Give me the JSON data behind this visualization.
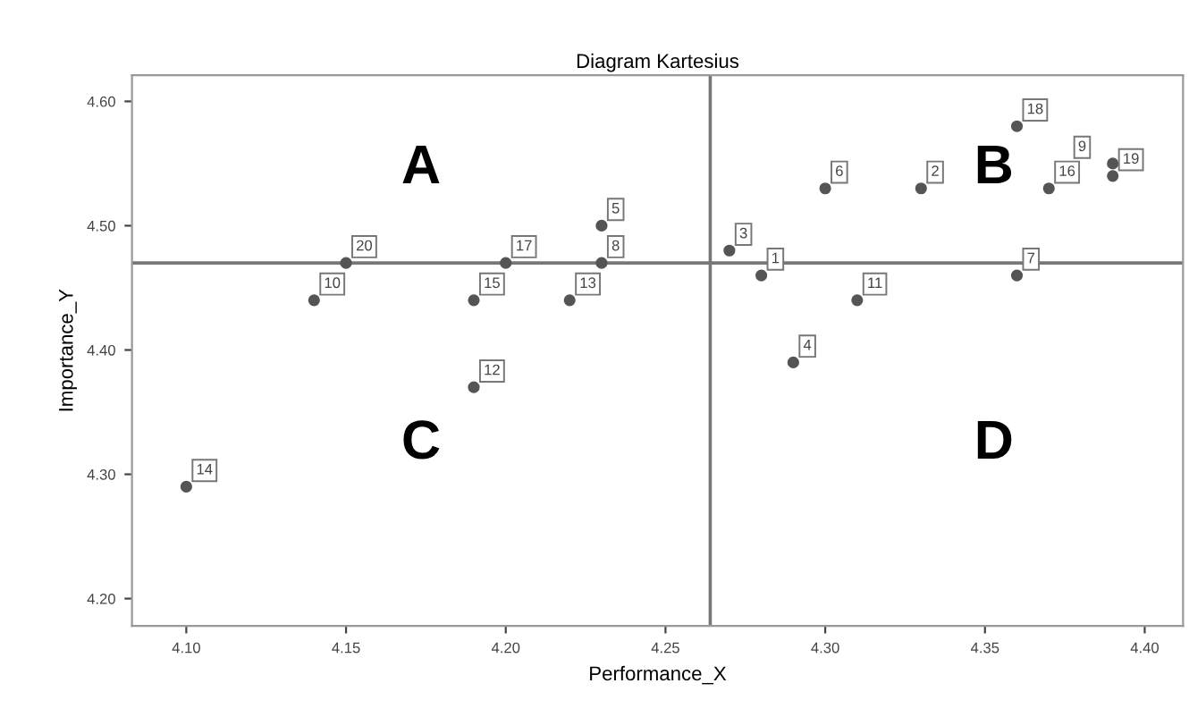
{
  "chart_data": {
    "type": "scatter",
    "title": "Diagram Kartesius",
    "xlabel": "Performance_X",
    "ylabel": "Importance_Y",
    "x": [
      4.1,
      4.14,
      4.15,
      4.19,
      4.19,
      4.2,
      4.22,
      4.23,
      4.23,
      4.27,
      4.28,
      4.29,
      4.31,
      4.3,
      4.33,
      4.36,
      4.36,
      4.37,
      4.39,
      4.39
    ],
    "series": [
      {
        "color": "#555555",
        "values": [
          4.29,
          4.44,
          4.47,
          4.37,
          4.44,
          4.47,
          4.44,
          4.5,
          4.47,
          4.48,
          4.46,
          4.39,
          4.44,
          4.53,
          4.53,
          4.58,
          4.46,
          4.53,
          4.55,
          4.54
        ]
      }
    ],
    "value_labels": [
      "14",
      "10",
      "20",
      "12",
      "15",
      "17",
      "13",
      "5",
      "8",
      "3",
      "1",
      "4",
      "11",
      "6",
      "2",
      "18",
      "7",
      "16",
      "9",
      "19"
    ],
    "marker": "circle",
    "grid": false,
    "xlim": [
      4.083,
      4.412
    ],
    "ylim": [
      4.178,
      4.621
    ],
    "xticks": [
      {
        "value": 4.1,
        "label": "4.10"
      },
      {
        "value": 4.15,
        "label": "4.15"
      },
      {
        "value": 4.2,
        "label": "4.20"
      },
      {
        "value": 4.25,
        "label": "4.25"
      },
      {
        "value": 4.3,
        "label": "4.30"
      },
      {
        "value": 4.35,
        "label": "4.35"
      },
      {
        "value": 4.4,
        "label": "4.40"
      }
    ],
    "yticks": [
      {
        "value": 4.2,
        "label": "4.20"
      },
      {
        "value": 4.3,
        "label": "4.30"
      },
      {
        "value": 4.4,
        "label": "4.40"
      },
      {
        "value": 4.5,
        "label": "4.50"
      },
      {
        "value": 4.6,
        "label": "4.60"
      }
    ],
    "ref_lines": [
      {
        "axis": "x",
        "value": 4.264,
        "color": "#777777"
      },
      {
        "axis": "y",
        "value": 4.47,
        "color": "#777777"
      }
    ],
    "annotations": [
      "A",
      "B",
      "C",
      "D"
    ]
  }
}
